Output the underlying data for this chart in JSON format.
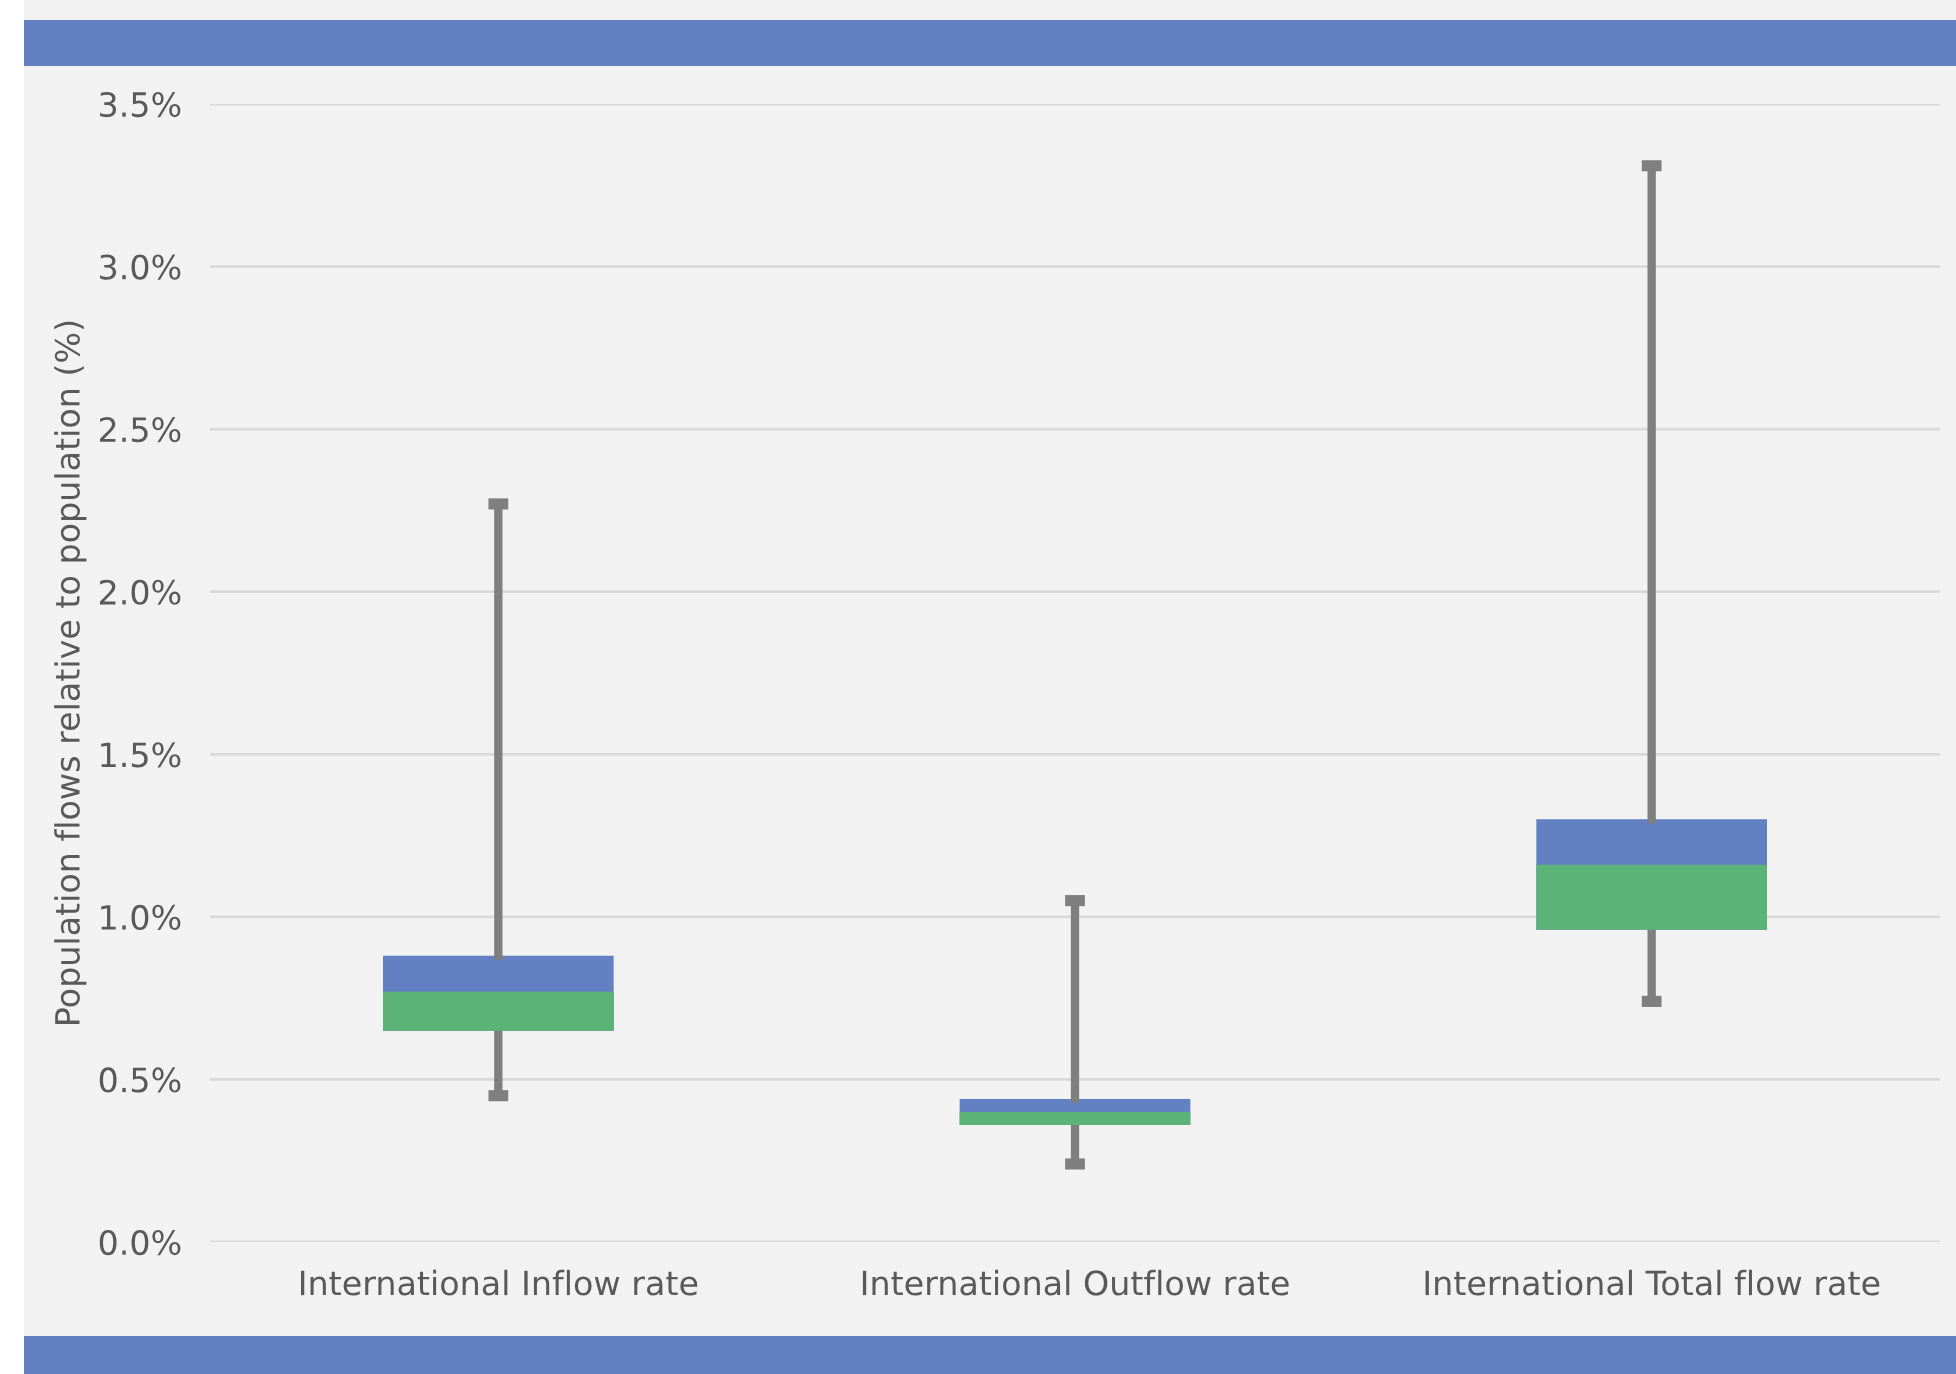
{
  "chart_data": {
    "type": "box",
    "ylabel": "Population flows relative to population (%)",
    "categories": [
      "International Inflow rate",
      "International Outflow rate",
      "International Total flow rate"
    ],
    "series": [
      {
        "color": "#6280c2",
        "boxes": [
          {
            "low": 0.45,
            "q1": 0.65,
            "median": 0.77,
            "q3": 0.88,
            "high": 2.27
          },
          {
            "low": 0.24,
            "q1": 0.36,
            "median": 0.4,
            "q3": 0.44,
            "high": 1.05
          },
          {
            "low": 0.74,
            "q1": 0.96,
            "median": 1.16,
            "q3": 1.3,
            "high": 3.31
          }
        ]
      }
    ],
    "ylim": [
      0,
      3.5
    ],
    "yticks": [
      {
        "value": 0,
        "label": "0.0%"
      },
      {
        "value": 0.5,
        "label": "0.5%"
      },
      {
        "value": 1.0,
        "label": "1.0%"
      },
      {
        "value": 1.5,
        "label": "1.5%"
      },
      {
        "value": 2.0,
        "label": "2.0%"
      },
      {
        "value": 2.5,
        "label": "2.5%"
      },
      {
        "value": 3.0,
        "label": "3.0%"
      },
      {
        "value": 3.5,
        "label": "3.5%"
      }
    ],
    "grid": "y",
    "legend": false
  }
}
